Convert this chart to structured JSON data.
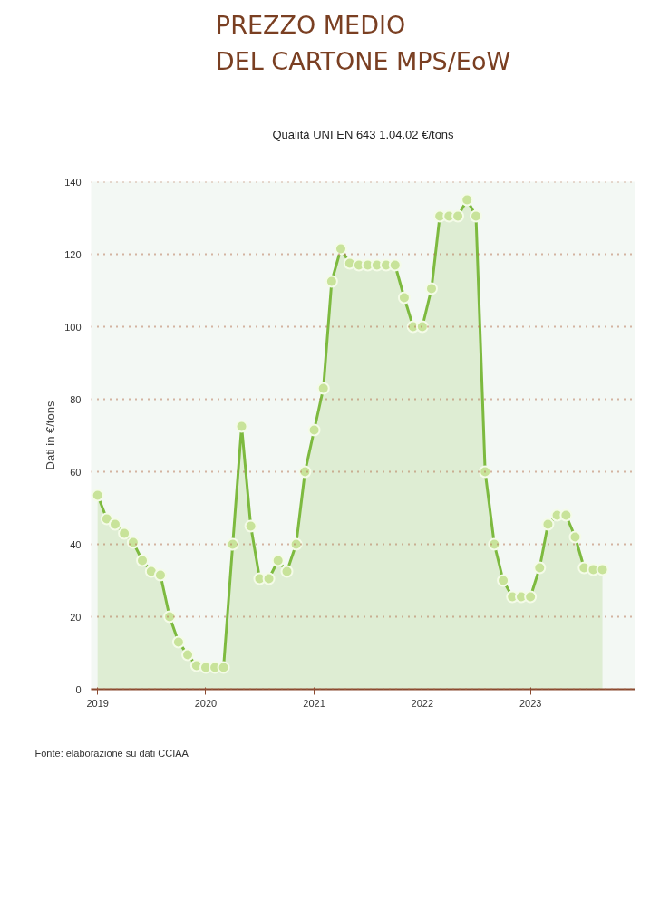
{
  "chart_data": {
    "type": "area",
    "title": "PREZZO MEDIO\nDEL CARTONE MPS/EoW",
    "subtitle": "Qualità UNI EN 643 1.04.02 €/tons",
    "ylabel": "Dati in €/tons",
    "annotations": [
      "Fonte: elaborazione su dati CCIAA"
    ],
    "x": [
      "2019-01",
      "2019-02",
      "2019-03",
      "2019-04",
      "2019-05",
      "2019-06",
      "2019-07",
      "2019-08",
      "2019-09",
      "2019-10",
      "2019-11",
      "2019-12",
      "2020-01",
      "2020-02",
      "2020-03",
      "2020-04",
      "2020-05",
      "2020-06",
      "2020-07",
      "2020-08",
      "2020-09",
      "2020-10",
      "2020-11",
      "2020-12",
      "2021-01",
      "2021-02",
      "2021-03",
      "2021-04",
      "2021-05",
      "2021-06",
      "2021-07",
      "2021-08",
      "2021-09",
      "2021-10",
      "2021-11",
      "2021-12",
      "2022-01",
      "2022-02",
      "2022-03",
      "2022-04",
      "2022-05",
      "2022-06",
      "2022-07",
      "2022-08",
      "2022-09",
      "2022-10",
      "2022-11",
      "2022-12",
      "2023-01",
      "2023-02",
      "2023-03",
      "2023-04",
      "2023-05",
      "2023-06",
      "2023-07",
      "2023-08",
      "2023-09"
    ],
    "series": [
      {
        "color": "#7dba3f",
        "values": [
          53.5,
          47,
          45.5,
          43,
          40.5,
          35.5,
          32.5,
          31.5,
          20,
          13,
          9.5,
          6.5,
          6,
          6,
          6,
          40,
          72.5,
          45,
          30.5,
          30.5,
          35.5,
          32.5,
          40,
          60,
          71.5,
          83,
          112.5,
          121.5,
          117.5,
          117,
          117,
          117,
          117,
          117,
          108,
          100,
          100,
          110.5,
          130.5,
          130.5,
          130.5,
          135,
          130.5,
          60,
          40,
          30,
          25.5,
          25.5,
          25.5,
          33.5,
          45.5,
          48,
          48,
          42,
          33.5,
          33,
          33
        ]
      }
    ],
    "xlim": [
      "2018-12-10",
      "2023-12-20"
    ],
    "xticks": [
      "2019",
      "2020",
      "2021",
      "2022",
      "2023"
    ],
    "ylim": [
      0,
      140
    ],
    "yticks": [
      0,
      20,
      40,
      60,
      80,
      100,
      120,
      140
    ],
    "grid": "y",
    "marker": "circle",
    "line_style": "solid"
  }
}
